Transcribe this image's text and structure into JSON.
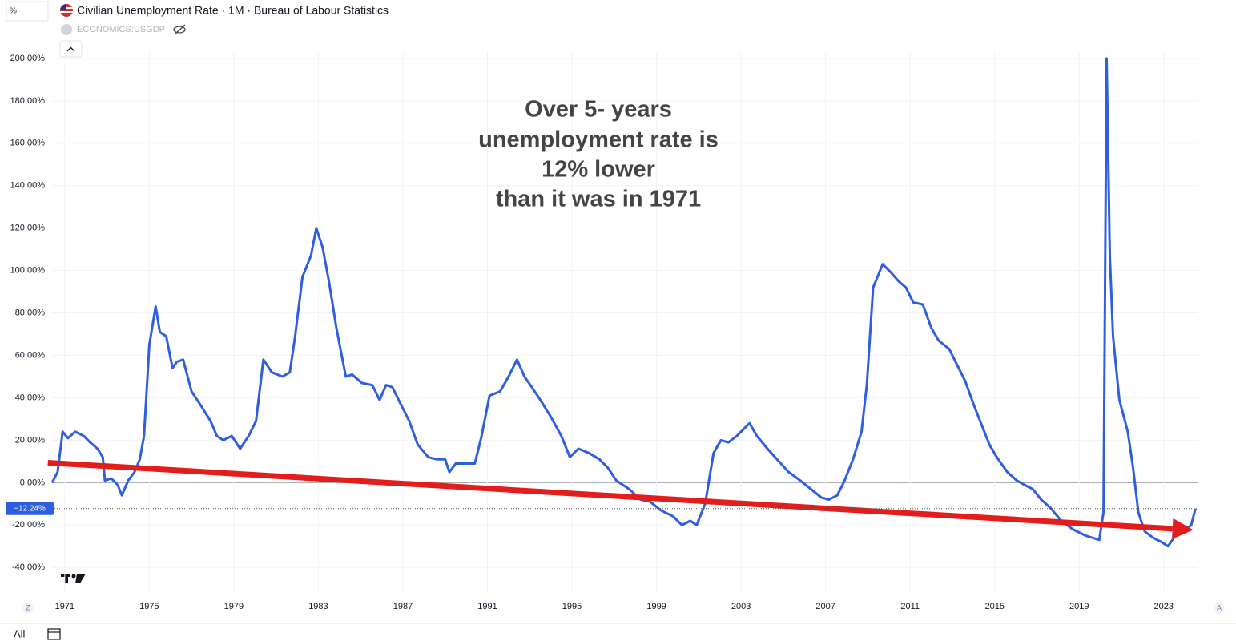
{
  "chart_data": {
    "type": "line",
    "title": "Civilian Unemployment Rate · 1M · Bureau of Labour Statistics",
    "symbol": "ECONOMICS:USGDP",
    "scale_unit": "%",
    "annotation": [
      "Over 5- years",
      "unemployment rate is",
      "12% lower",
      "than it was in 1971"
    ],
    "xlim": [
      1970.4,
      2024.6
    ],
    "xticks": [
      1971,
      1975,
      1979,
      1983,
      1987,
      1991,
      1995,
      1999,
      2003,
      2007,
      2011,
      2015,
      2019,
      2023
    ],
    "ylim": [
      -52,
      203
    ],
    "yticks": [
      {
        "value": -40,
        "label": "-40.00%"
      },
      {
        "value": -20,
        "label": "-20.00%"
      },
      {
        "value": 0,
        "label": "0.00%"
      },
      {
        "value": 20,
        "label": "20.00%"
      },
      {
        "value": 40,
        "label": "40.00%"
      },
      {
        "value": 60,
        "label": "60.00%"
      },
      {
        "value": 80,
        "label": "80.00%"
      },
      {
        "value": 100,
        "label": "100.00%"
      },
      {
        "value": 120,
        "label": "120.00%"
      },
      {
        "value": 140,
        "label": "140.00%"
      },
      {
        "value": 160,
        "label": "160.00%"
      },
      {
        "value": 180,
        "label": "180.00%"
      },
      {
        "value": 200,
        "label": "200.00%"
      }
    ],
    "grid": true,
    "last_value": {
      "value": -12.24,
      "label": "−12.24%"
    },
    "series": [
      {
        "name": "Civilian Unemployment Rate",
        "color": "#2f5fe0",
        "x": [
          1970.4,
          1970.66,
          1970.9,
          1971.15,
          1971.5,
          1971.9,
          1972.2,
          1972.55,
          1972.8,
          1972.9,
          1973.2,
          1973.5,
          1973.7,
          1974.0,
          1974.3,
          1974.55,
          1974.75,
          1975.0,
          1975.3,
          1975.5,
          1975.8,
          1976.1,
          1976.3,
          1976.6,
          1977.0,
          1977.4,
          1977.9,
          1978.2,
          1978.5,
          1978.9,
          1979.3,
          1979.7,
          1980.05,
          1980.4,
          1980.8,
          1981.3,
          1981.65,
          1981.9,
          1982.25,
          1982.65,
          1982.9,
          1983.2,
          1983.5,
          1983.85,
          1984.3,
          1984.6,
          1985.05,
          1985.55,
          1985.9,
          1986.2,
          1986.5,
          1986.9,
          1987.3,
          1987.7,
          1988.2,
          1988.6,
          1989.0,
          1989.2,
          1989.5,
          1989.9,
          1990.4,
          1990.7,
          1991.1,
          1991.6,
          1992.0,
          1992.4,
          1992.75,
          1993.1,
          1993.5,
          1994.0,
          1994.5,
          1994.9,
          1995.3,
          1995.8,
          1996.3,
          1996.7,
          1997.1,
          1997.7,
          1998.25,
          1998.7,
          1999.2,
          1999.8,
          2000.2,
          2000.6,
          2000.9,
          2001.3,
          2001.7,
          2002.05,
          2002.4,
          2002.8,
          2003.4,
          2003.75,
          2004.25,
          2004.7,
          2005.25,
          2005.8,
          2006.3,
          2006.8,
          2007.15,
          2007.55,
          2007.9,
          2008.3,
          2008.7,
          2008.95,
          2009.25,
          2009.7,
          2010.1,
          2010.45,
          2010.8,
          2011.15,
          2011.6,
          2012.0,
          2012.35,
          2012.85,
          2013.2,
          2013.6,
          2014.0,
          2014.35,
          2014.75,
          2015.1,
          2015.6,
          2016.05,
          2016.4,
          2016.8,
          2017.2,
          2017.65,
          2018.15,
          2018.7,
          2019.3,
          2019.95,
          2020.15,
          2020.3,
          2020.45,
          2020.6,
          2020.9,
          2021.3,
          2021.55,
          2021.8,
          2022.1,
          2022.5,
          2022.9,
          2023.2,
          2023.55,
          2023.95,
          2024.3,
          2024.5
        ],
        "values": [
          0,
          5,
          24,
          21,
          24,
          22,
          19,
          16,
          12,
          1,
          2,
          -1,
          -6,
          1,
          5,
          11,
          22,
          65,
          83,
          71,
          69,
          54,
          57,
          58,
          43,
          37,
          29,
          22,
          20,
          22,
          16,
          22,
          29,
          58,
          52,
          50,
          52,
          69,
          97,
          107,
          120,
          111,
          95,
          73,
          50,
          51,
          47,
          46,
          39,
          46,
          45,
          37,
          29,
          18,
          12,
          11,
          11,
          5,
          9,
          9,
          9,
          21,
          41,
          43,
          50,
          58,
          50,
          45,
          39,
          31,
          22,
          12,
          16,
          14,
          11,
          7,
          1,
          -3,
          -8,
          -9,
          -13,
          -16,
          -20,
          -18,
          -20,
          -10,
          14,
          20,
          19,
          22,
          28,
          22,
          16,
          11,
          5,
          1,
          -3,
          -7,
          -8,
          -6,
          1,
          11,
          24,
          46,
          92,
          103,
          99,
          95,
          92,
          85,
          84,
          73,
          67,
          63,
          56,
          48,
          37,
          28,
          18,
          12,
          5,
          1,
          -1,
          -3,
          -8,
          -12,
          -18,
          -22,
          -25,
          -27,
          -14,
          200,
          107,
          69,
          39,
          24,
          7,
          -14,
          -23,
          -26,
          -28,
          -30,
          -25,
          -23,
          -20,
          -12.24
        ]
      }
    ],
    "trend_line": {
      "color": "#e31c1c",
      "x": [
        1970.2,
        2024.4
      ],
      "values": [
        9.4,
        -22.3
      ]
    },
    "controls": {
      "left_corner": "Z",
      "right_corner": "A",
      "range": "All"
    }
  }
}
